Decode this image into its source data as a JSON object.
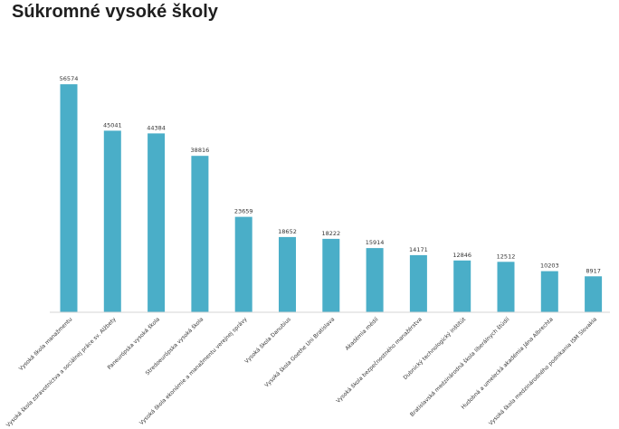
{
  "chart_data": {
    "type": "bar",
    "title": "Súkromné vysoké školy",
    "xlabel": "",
    "ylabel": "",
    "ylim": [
      0,
      60000
    ],
    "grid": false,
    "legend": "none",
    "bar_color": "#4aaec8",
    "categories": [
      "Vysoká škola manažmentu",
      "Vysoká škola zdravotníctva a sociálnej práce sv. Alžbety",
      "Paneurópska vysoká škola",
      "Stredoeurópska vysoká škola",
      "Vysoká škola ekonómie a manažmentu verejnej správy",
      "Vysoká škola Danubius",
      "Vysoká škola Goethe Uni Bratislava",
      "Akadémia médií",
      "Vysoká škola bezpečnostného manažérstva",
      "Dubnický technologický inštitút",
      "Bratislavská medzinárodná škola liberálnych štúdií",
      "Hudobná a umelecká akadémia Jána Albrechta",
      "Vysoká škola medzinárodného podnikania ISM Slovakia"
    ],
    "values": [
      56574,
      45041,
      44384,
      38816,
      23659,
      18652,
      18222,
      15914,
      14171,
      12846,
      12512,
      10203,
      8917
    ]
  }
}
